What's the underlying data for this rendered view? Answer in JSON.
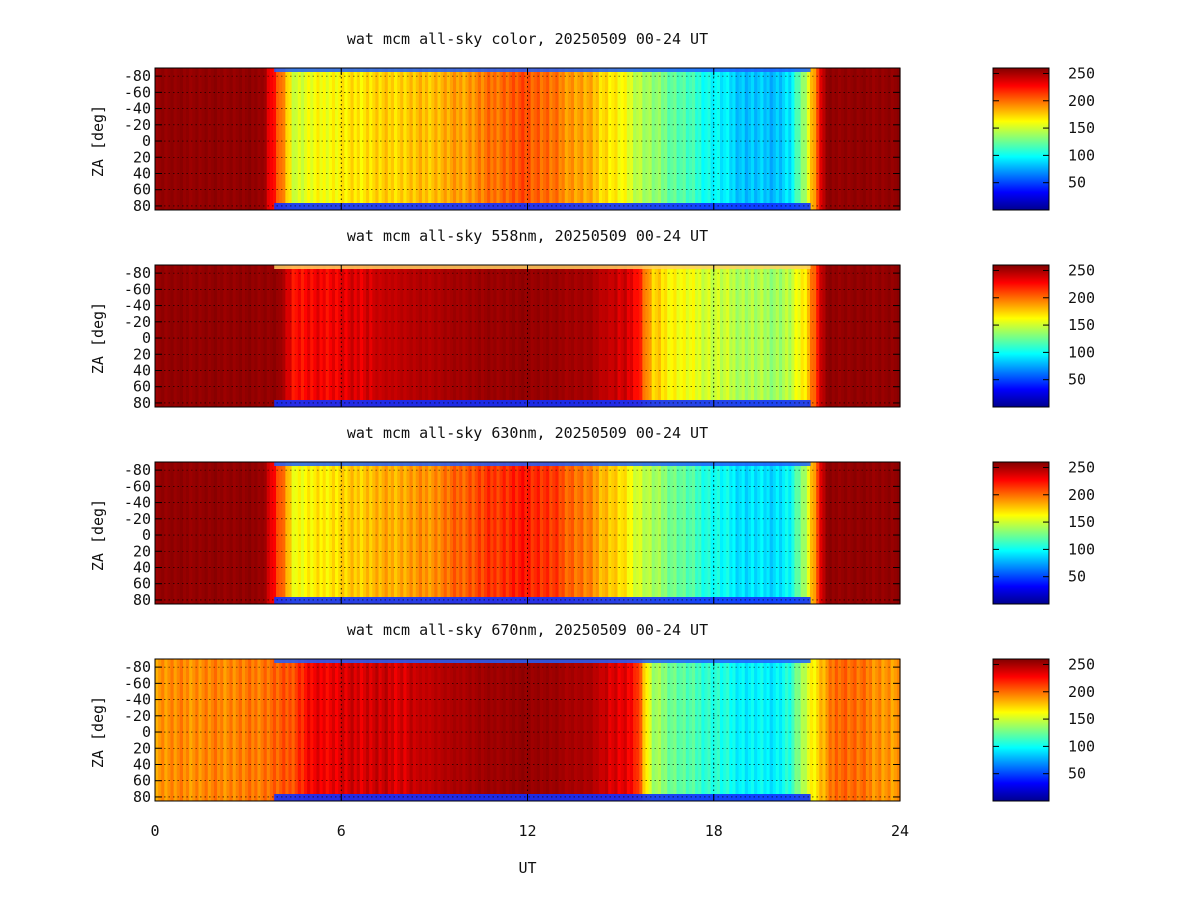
{
  "chart_data": [
    {
      "type": "heatmap",
      "title": "wat mcm all-sky color, 20250509 00-24 UT",
      "xlabel": "",
      "ylabel": "ZA [deg]",
      "xlim": [
        0,
        24
      ],
      "ylim": [
        -90,
        85
      ],
      "y_ticks": [
        "-80",
        "-60",
        "-40",
        "-20",
        "0",
        "20",
        "40",
        "60",
        "80"
      ],
      "x_ticks": [],
      "colorbar_ticks": [
        "250",
        "200",
        "150",
        "100",
        "50"
      ],
      "clim": [
        0,
        260
      ],
      "grid": true,
      "colormap": "jet",
      "profile": [
        [
          0,
          255
        ],
        [
          3.5,
          255
        ],
        [
          4.5,
          150
        ],
        [
          5,
          158
        ],
        [
          6,
          165
        ],
        [
          7,
          172
        ],
        [
          8,
          175
        ],
        [
          9,
          180
        ],
        [
          10,
          188
        ],
        [
          11,
          200
        ],
        [
          12,
          208
        ],
        [
          13,
          195
        ],
        [
          14,
          182
        ],
        [
          15,
          162
        ],
        [
          16,
          135
        ],
        [
          17,
          118
        ],
        [
          18,
          98
        ],
        [
          19,
          82
        ],
        [
          20,
          82
        ],
        [
          20.5,
          92
        ],
        [
          21,
          150
        ],
        [
          21.6,
          255
        ],
        [
          24,
          255
        ]
      ]
    },
    {
      "type": "heatmap",
      "title": "wat mcm all-sky 558nm, 20250509 00-24 UT",
      "xlabel": "",
      "ylabel": "ZA [deg]",
      "xlim": [
        0,
        24
      ],
      "ylim": [
        -90,
        85
      ],
      "y_ticks": [
        "-80",
        "-60",
        "-40",
        "-20",
        "0",
        "20",
        "40",
        "60",
        "80"
      ],
      "x_ticks": [],
      "colorbar_ticks": [
        "250",
        "200",
        "150",
        "100",
        "50"
      ],
      "clim": [
        0,
        260
      ],
      "grid": true,
      "colormap": "jet",
      "profile": [
        [
          0,
          255
        ],
        [
          4,
          255
        ],
        [
          4.5,
          225
        ],
        [
          6,
          232
        ],
        [
          7,
          240
        ],
        [
          8,
          245
        ],
        [
          9,
          248
        ],
        [
          10,
          252
        ],
        [
          12,
          255
        ],
        [
          14,
          250
        ],
        [
          15.5,
          232
        ],
        [
          16,
          175
        ],
        [
          17,
          160
        ],
        [
          18,
          150
        ],
        [
          19,
          142
        ],
        [
          20,
          138
        ],
        [
          20.5,
          145
        ],
        [
          21,
          175
        ],
        [
          21.6,
          255
        ],
        [
          24,
          255
        ]
      ]
    },
    {
      "type": "heatmap",
      "title": "wat mcm all-sky 630nm, 20250509 00-24 UT",
      "xlabel": "",
      "ylabel": "ZA [deg]",
      "xlim": [
        0,
        24
      ],
      "ylim": [
        -90,
        85
      ],
      "y_ticks": [
        "-80",
        "-60",
        "-40",
        "-20",
        "0",
        "20",
        "40",
        "60",
        "80"
      ],
      "x_ticks": [],
      "colorbar_ticks": [
        "250",
        "200",
        "150",
        "100",
        "50"
      ],
      "clim": [
        0,
        260
      ],
      "grid": true,
      "colormap": "jet",
      "profile": [
        [
          0,
          255
        ],
        [
          3.5,
          255
        ],
        [
          4.5,
          160
        ],
        [
          6,
          172
        ],
        [
          7,
          180
        ],
        [
          8,
          185
        ],
        [
          9,
          192
        ],
        [
          10,
          205
        ],
        [
          11,
          215
        ],
        [
          12,
          222
        ],
        [
          13,
          210
        ],
        [
          14,
          192
        ],
        [
          15,
          170
        ],
        [
          16,
          140
        ],
        [
          17,
          122
        ],
        [
          18,
          102
        ],
        [
          19,
          90
        ],
        [
          20,
          90
        ],
        [
          20.5,
          98
        ],
        [
          21,
          150
        ],
        [
          21.6,
          255
        ],
        [
          24,
          255
        ]
      ]
    },
    {
      "type": "heatmap",
      "title": "wat mcm all-sky 670nm, 20250509 00-24 UT",
      "xlabel": "UT",
      "ylabel": "ZA [deg]",
      "xlim": [
        0,
        24
      ],
      "ylim": [
        -90,
        85
      ],
      "y_ticks": [
        "-80",
        "-60",
        "-40",
        "-20",
        "0",
        "20",
        "40",
        "60",
        "80"
      ],
      "x_ticks": [
        "0",
        "6",
        "12",
        "18",
        "24"
      ],
      "colorbar_ticks": [
        "250",
        "200",
        "150",
        "100",
        "50"
      ],
      "clim": [
        0,
        260
      ],
      "grid": true,
      "colormap": "jet",
      "profile": [
        [
          0,
          190
        ],
        [
          3,
          195
        ],
        [
          4.3,
          205
        ],
        [
          5,
          228
        ],
        [
          6,
          235
        ],
        [
          7,
          240
        ],
        [
          8,
          238
        ],
        [
          9,
          245
        ],
        [
          10,
          250
        ],
        [
          12,
          255
        ],
        [
          14,
          248
        ],
        [
          15.5,
          225
        ],
        [
          16,
          140
        ],
        [
          17,
          120
        ],
        [
          18,
          108
        ],
        [
          19,
          95
        ],
        [
          20,
          95
        ],
        [
          20.5,
          108
        ],
        [
          21,
          155
        ],
        [
          22,
          205
        ],
        [
          24,
          185
        ]
      ]
    }
  ]
}
